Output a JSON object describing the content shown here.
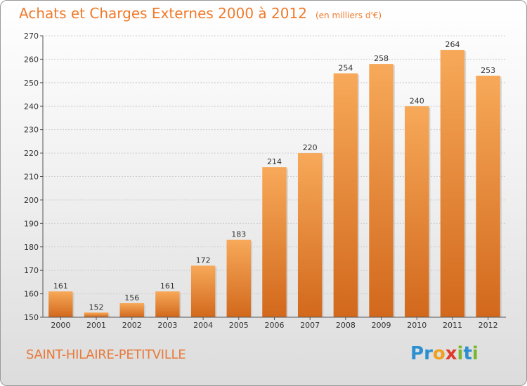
{
  "title": "Achats et Charges Externes 2000 à 2012",
  "subtitle": "(en milliers d'€)",
  "city": "SAINT-HILAIRE-PETITVILLE",
  "logo": {
    "letters": [
      "P",
      "r",
      "o",
      "x",
      "i",
      "t",
      "i"
    ],
    "colors": [
      "#2c8fd0",
      "#2c8fd0",
      "#f0a020",
      "#e03a2a",
      "#7ab830",
      "#2c8fd0",
      "#7ab830"
    ]
  },
  "chart_data": {
    "type": "bar",
    "categories": [
      "2000",
      "2001",
      "2002",
      "2003",
      "2004",
      "2005",
      "2006",
      "2007",
      "2008",
      "2009",
      "2010",
      "2011",
      "2012"
    ],
    "values": [
      161,
      152,
      156,
      161,
      172,
      183,
      214,
      220,
      254,
      258,
      240,
      264,
      253
    ],
    "title": "Achats et Charges Externes 2000 à 2012",
    "xlabel": "",
    "ylabel": "",
    "ylim": [
      150,
      270
    ],
    "yticks": [
      150,
      160,
      170,
      180,
      190,
      200,
      210,
      220,
      230,
      240,
      250,
      260,
      270
    ],
    "grid": true,
    "bar_color_top": "#f7a959",
    "bar_color_bottom": "#d2681c"
  }
}
